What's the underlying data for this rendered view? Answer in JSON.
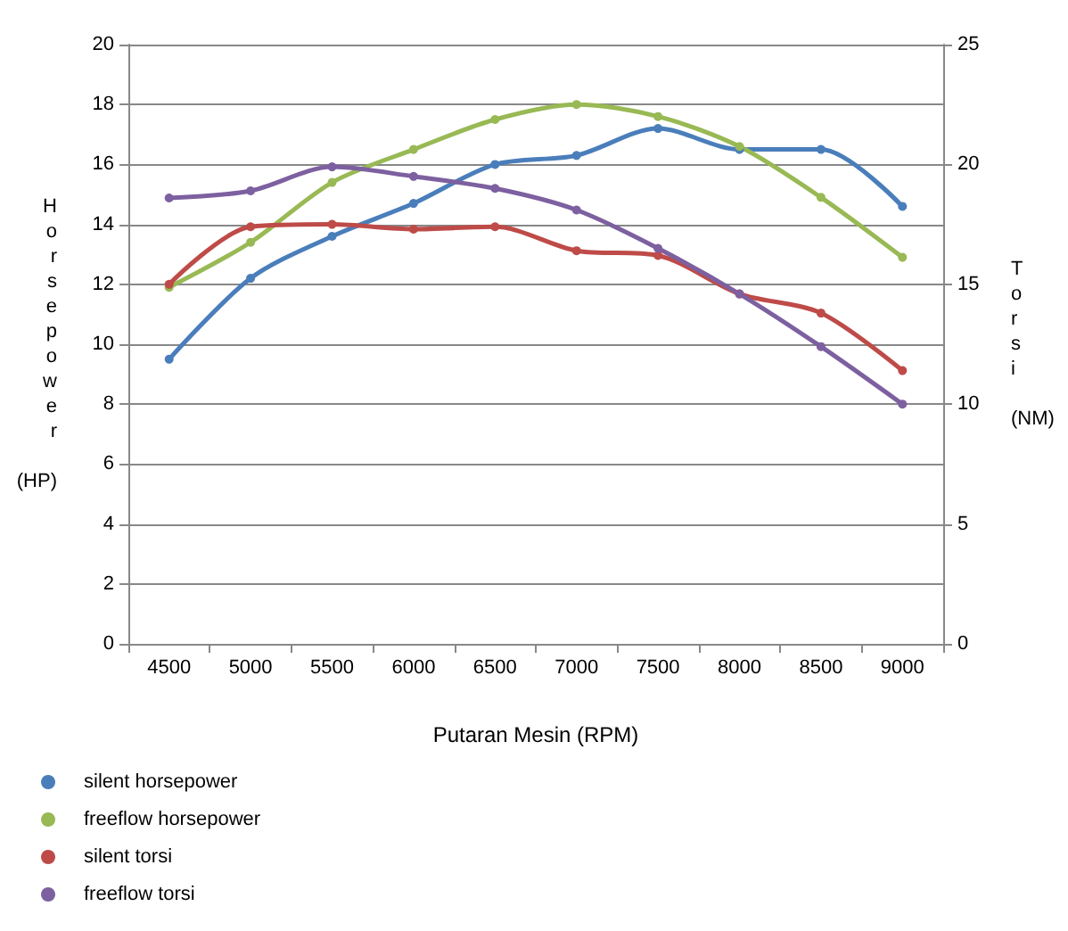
{
  "chart_data": {
    "type": "line",
    "xlabel": "Putaran Mesin (RPM)",
    "ylabel": "Horsepower (HP)",
    "y2label": "Torsi (NM)",
    "categories": [
      "4500",
      "5000",
      "5500",
      "6000",
      "6500",
      "7000",
      "7500",
      "8000",
      "8500",
      "9000"
    ],
    "series": [
      {
        "name": "silent horsepower",
        "color": "#4a7ebb",
        "values": [
          9.5,
          12.2,
          13.6,
          14.7,
          16.0,
          16.3,
          17.2,
          16.5,
          16.5,
          14.6
        ]
      },
      {
        "name": "freeflow horsepower",
        "color": "#98b954",
        "values": [
          11.9,
          13.4,
          15.4,
          16.5,
          17.5,
          18.0,
          17.6,
          16.6,
          14.9,
          12.9
        ]
      },
      {
        "name": "silent torsi",
        "color": "#be4b48",
        "axis": "y2",
        "values": [
          15.0,
          17.4,
          17.5,
          17.3,
          17.4,
          16.4,
          16.2,
          14.6,
          13.8,
          11.4
        ]
      },
      {
        "name": "freeflow torsi",
        "color": "#7d60a0",
        "axis": "y2",
        "values": [
          18.6,
          18.9,
          19.9,
          19.5,
          19.0,
          18.1,
          16.5,
          14.6,
          12.4,
          10.0
        ]
      }
    ],
    "ylim": [
      0,
      20
    ],
    "yticks": [
      0,
      2,
      4,
      6,
      8,
      10,
      12,
      14,
      16,
      18,
      20
    ],
    "y2lim": [
      0,
      25
    ],
    "y2ticks": [
      0,
      5,
      10,
      15,
      20,
      25
    ],
    "grid": "y",
    "legend": "bottom",
    "marker": "circle",
    "line_style": "solid"
  }
}
